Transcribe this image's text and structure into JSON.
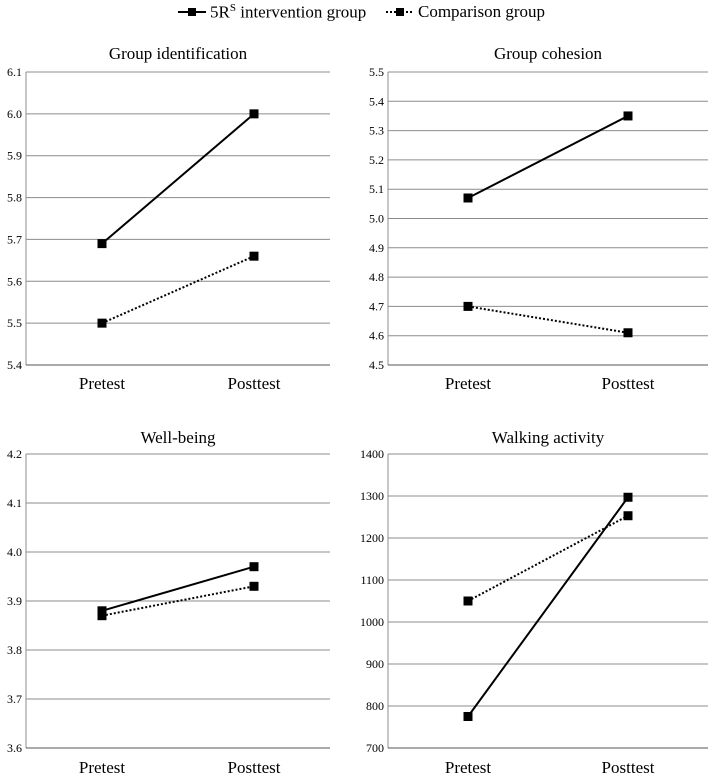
{
  "legend": {
    "intervention_base": "5R",
    "intervention_sup": "S",
    "intervention_rest": " intervention group",
    "comparison": "Comparison group"
  },
  "chart_data": [
    {
      "type": "line",
      "title": "Group identification",
      "categories": [
        "Pretest",
        "Posttest"
      ],
      "ylim": [
        5.4,
        6.1
      ],
      "yticks": [
        5.4,
        5.5,
        5.6,
        5.7,
        5.8,
        5.9,
        6.0,
        6.1
      ],
      "ytick_labels": [
        "5.4",
        "5.5",
        "5.6",
        "5.7",
        "5.8",
        "5.9",
        "6.0",
        "6.1"
      ],
      "series": [
        {
          "name": "5R^S intervention group",
          "values": [
            5.69,
            6.0
          ],
          "style": "solid"
        },
        {
          "name": "Comparison group",
          "values": [
            5.5,
            5.66
          ],
          "style": "dotted"
        }
      ]
    },
    {
      "type": "line",
      "title": "Group cohesion",
      "categories": [
        "Pretest",
        "Posttest"
      ],
      "ylim": [
        4.5,
        5.5
      ],
      "yticks": [
        4.5,
        4.6,
        4.7,
        4.8,
        4.9,
        5.0,
        5.1,
        5.2,
        5.3,
        5.4,
        5.5
      ],
      "ytick_labels": [
        "4.5",
        "4.6",
        "4.7",
        "4.8",
        "4.9",
        "5.0",
        "5.1",
        "5.2",
        "5.3",
        "5.4",
        "5.5"
      ],
      "series": [
        {
          "name": "5R^S intervention group",
          "values": [
            5.07,
            5.35
          ],
          "style": "solid"
        },
        {
          "name": "Comparison group",
          "values": [
            4.7,
            4.61
          ],
          "style": "dotted"
        }
      ]
    },
    {
      "type": "line",
      "title": "Well-being",
      "categories": [
        "Pretest",
        "Posttest"
      ],
      "ylim": [
        3.6,
        4.2
      ],
      "yticks": [
        3.6,
        3.7,
        3.8,
        3.9,
        4.0,
        4.1,
        4.2
      ],
      "ytick_labels": [
        "3.6",
        "3.7",
        "3.8",
        "3.9",
        "4.0",
        "4.1",
        "4.2"
      ],
      "series": [
        {
          "name": "5R^S intervention group",
          "values": [
            3.88,
            3.97
          ],
          "style": "solid"
        },
        {
          "name": "Comparison group",
          "values": [
            3.87,
            3.93
          ],
          "style": "dotted"
        }
      ]
    },
    {
      "type": "line",
      "title": "Walking activity",
      "categories": [
        "Pretest",
        "Posttest"
      ],
      "ylim": [
        700,
        1400
      ],
      "yticks": [
        700,
        800,
        900,
        1000,
        1100,
        1200,
        1300,
        1400
      ],
      "ytick_labels": [
        "700",
        "800",
        "900",
        "1000",
        "1100",
        "1200",
        "1300",
        "1400"
      ],
      "series": [
        {
          "name": "5R^S intervention group",
          "values": [
            775,
            1297
          ],
          "style": "solid"
        },
        {
          "name": "Comparison group",
          "values": [
            1050,
            1253
          ],
          "style": "dotted"
        }
      ]
    }
  ]
}
